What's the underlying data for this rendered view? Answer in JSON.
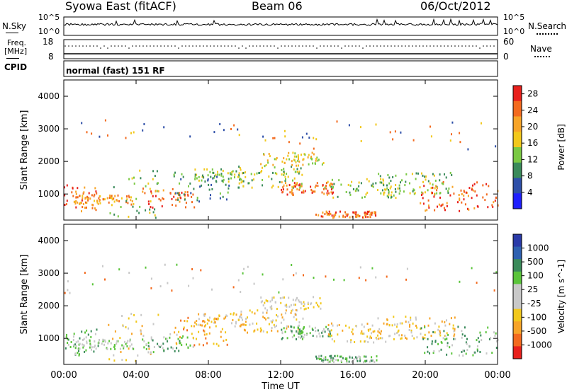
{
  "header": {
    "station": "Syowa East (fitACF)",
    "beam": "Beam 06",
    "date": "06/Oct/2012"
  },
  "noise_panel": {
    "left_label": "N.Sky",
    "right_label": "N.Search",
    "top_tick": "10^5",
    "bottom_tick": "10^0",
    "right_top_tick": "10^5",
    "right_bottom_tick": "10^0"
  },
  "freq_panel": {
    "left_label_line1": "Freq.",
    "left_label_line2": "[MHz]",
    "right_label": "Nave",
    "left_top_tick": "18",
    "left_bottom_tick": "8",
    "right_top_tick": "60",
    "right_bottom_tick": "0"
  },
  "cpid_panel": {
    "label": "CPID",
    "text": "normal (fast) 151 RF"
  },
  "colors": {
    "power_scale": [
      "#1f1fff",
      "#2e4fa8",
      "#3a8a5a",
      "#7ac943",
      "#f2c81b",
      "#f7a428",
      "#f36a1e",
      "#e8201c"
    ],
    "velocity_scale": [
      "#e8201c",
      "#f36a1e",
      "#f7a428",
      "#f2c81b",
      "#c8c8c8",
      "#c8c8c8",
      "#5ac43a",
      "#3a8a5a",
      "#2e60b0",
      "#2a3aa8"
    ]
  },
  "chart_data": [
    {
      "type": "heatmap",
      "panel": "power",
      "ylabel": "Slant Range [km]",
      "yticks": [
        "1000",
        "2000",
        "3000",
        "4000"
      ],
      "ylim": [
        200,
        4500
      ],
      "colorbar_label": "Power [dB]",
      "colorbar_ticks": [
        "4",
        "8",
        "12",
        "16",
        "20",
        "24",
        "28"
      ],
      "colorbar_range": [
        0,
        30
      ]
    },
    {
      "type": "heatmap",
      "panel": "velocity",
      "ylabel": "Slant Range [km]",
      "yticks": [
        "1000",
        "2000",
        "3000",
        "4000"
      ],
      "ylim": [
        200,
        4500
      ],
      "colorbar_label": "Velocity [m s^-1]",
      "colorbar_ticks": [
        "1000",
        "500",
        "100",
        "25",
        "-25",
        "-100",
        "-500",
        "-1000"
      ]
    }
  ],
  "x_axis": {
    "label": "Time UT",
    "ticks": [
      "00:00",
      "04:00",
      "08:00",
      "12:00",
      "16:00",
      "20:00",
      "00:00"
    ]
  }
}
